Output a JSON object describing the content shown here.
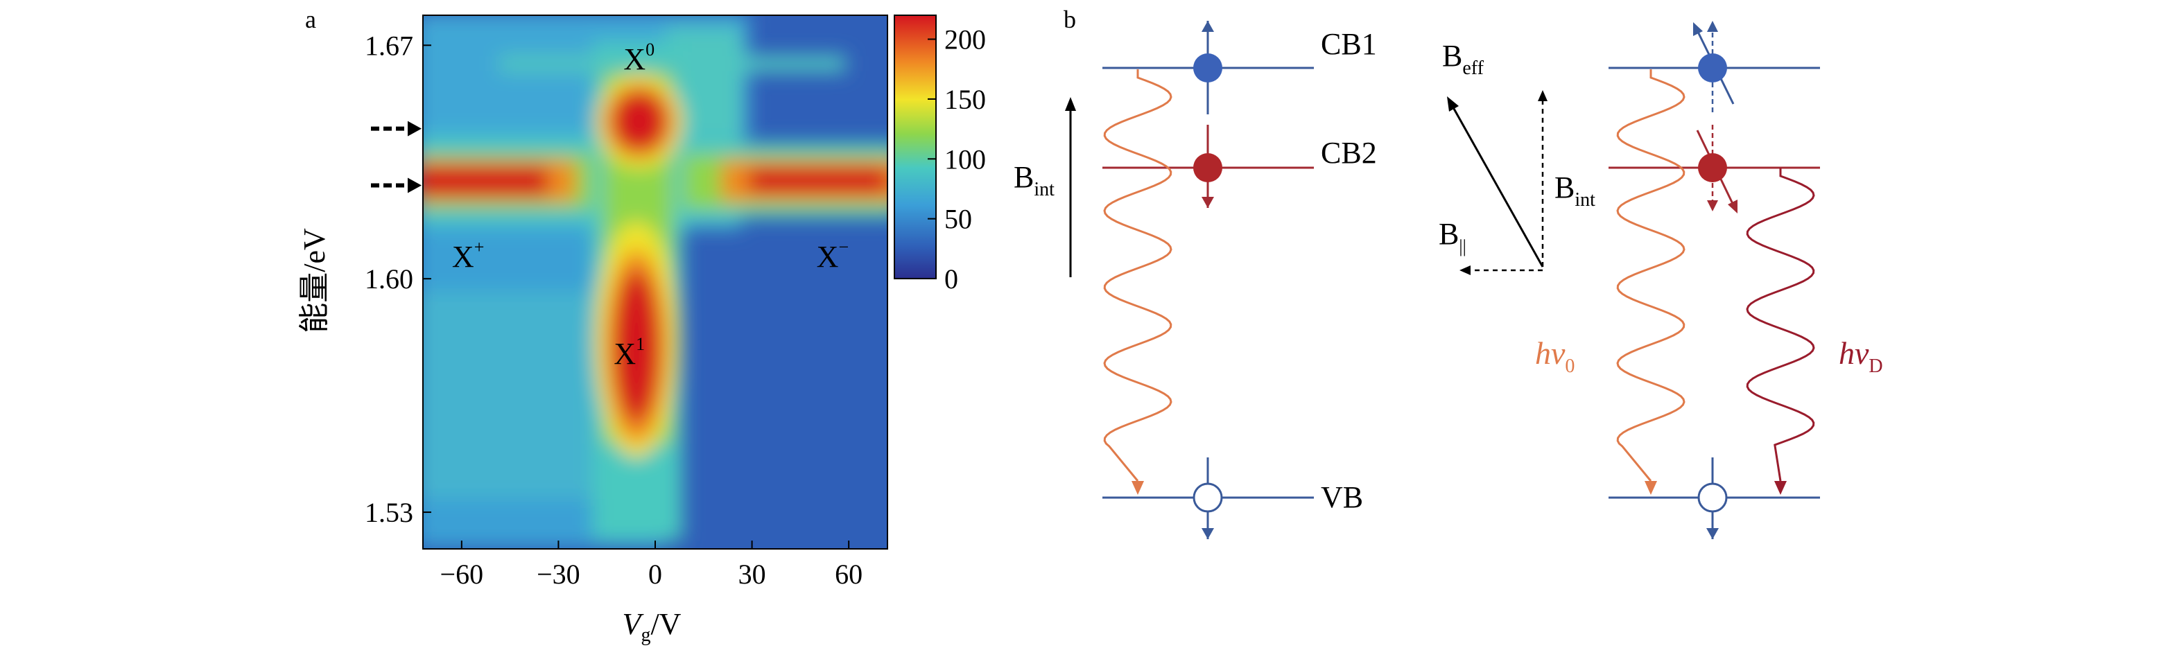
{
  "panel_a": {
    "label": "a",
    "chart_data": {
      "type": "heatmap",
      "xlabel_main": "V",
      "xlabel_sub": "g",
      "xlabel_unit": "/V",
      "ylabel": "能量/eV",
      "x_ticks": [
        "−60",
        "−30",
        "0",
        "30",
        "60"
      ],
      "x_tick_values": [
        -60,
        -30,
        0,
        30,
        60
      ],
      "y_ticks": [
        "1.67",
        "1.60",
        "1.53"
      ],
      "y_tick_values": [
        1.67,
        1.6,
        1.53
      ],
      "xlim": [
        -72,
        72
      ],
      "ylim": [
        1.519,
        1.679
      ],
      "colorbar": {
        "ticks": [
          "200",
          "150",
          "100",
          "50",
          "0"
        ],
        "tick_values": [
          200,
          150,
          100,
          50,
          0
        ],
        "range": [
          0,
          220
        ]
      },
      "features": [
        {
          "name": "X0",
          "label_main": "X",
          "label_sup": "0",
          "x": -5,
          "y": 1.645,
          "peak": 220
        },
        {
          "name": "X+",
          "label_main": "X",
          "label_sup": "+",
          "x": -50,
          "y": 1.628,
          "peak": 215
        },
        {
          "name": "X-",
          "label_main": "X",
          "label_sup": "−",
          "x": 50,
          "y": 1.628,
          "peak": 200
        },
        {
          "name": "X1",
          "label_main": "X",
          "label_sup": "1",
          "x": -6,
          "y": 1.585,
          "peak": 210
        }
      ],
      "arrow_markers_y": [
        1.645,
        1.628
      ]
    }
  },
  "panel_b": {
    "label": "b",
    "levels": {
      "cb1": "CB1",
      "cb2": "CB2",
      "vb": "VB"
    },
    "b_int": {
      "main": "B",
      "sub": "int"
    },
    "b_eff": {
      "main": "B",
      "sub": "eff"
    },
    "b_par": {
      "main": "B",
      "sub": "||"
    },
    "hv0": {
      "main": "hv",
      "sub": "0"
    },
    "hvD": {
      "main": "hv",
      "sub": "D"
    },
    "colors": {
      "blue_line": "#3a5a9a",
      "red_line": "#a32a32",
      "blue_dot": "#3b62b8",
      "red_dot": "#b0262a",
      "orange": "#e07a4a",
      "dark_red": "#9a1c2c"
    }
  }
}
